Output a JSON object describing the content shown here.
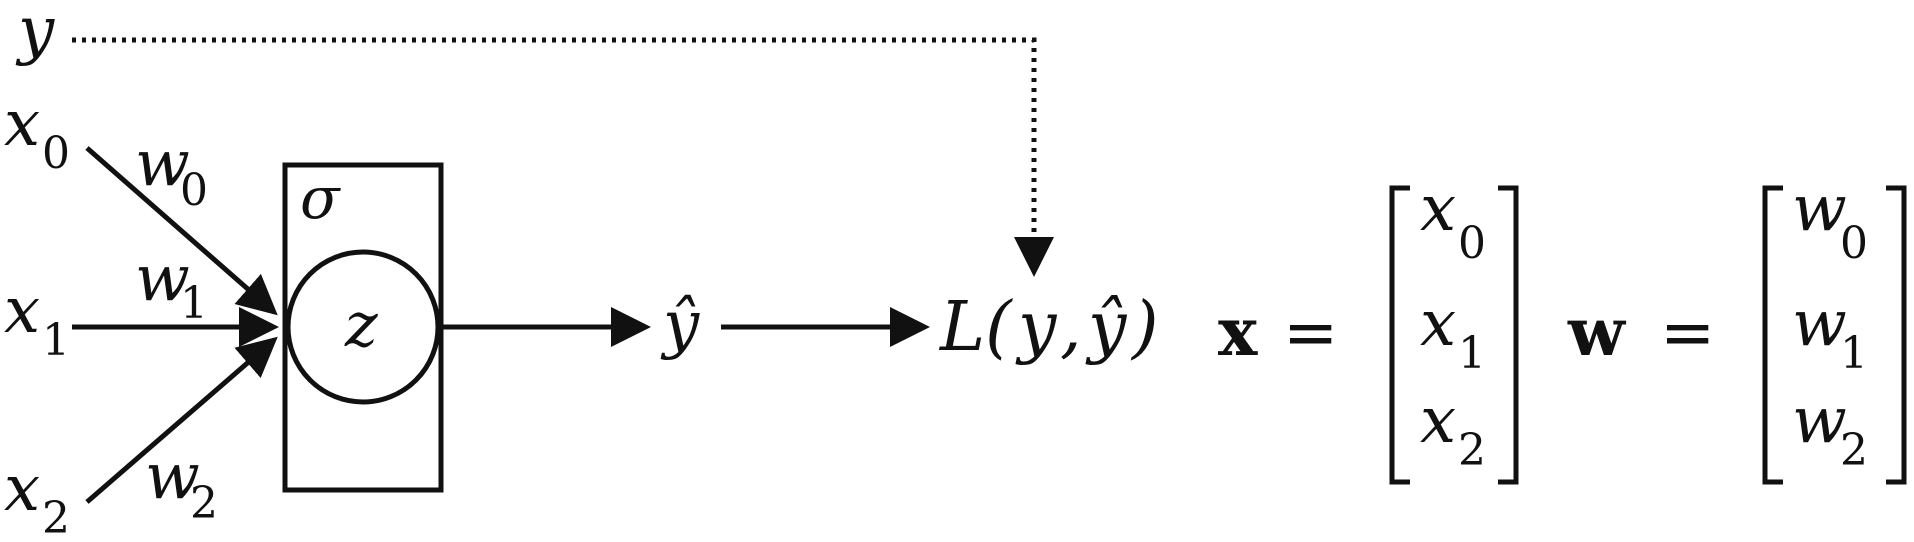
{
  "labels": {
    "target": "y",
    "x0_base": "x",
    "x0_sub": "0",
    "x1_base": "x",
    "x1_sub": "1",
    "x2_base": "x",
    "x2_sub": "2",
    "w0_base": "w",
    "w0_sub": "0",
    "w1_base": "w",
    "w1_sub": "1",
    "w2_base": "w",
    "w2_sub": "2",
    "activation": "σ",
    "preactivation": "z",
    "prediction": "ŷ",
    "loss_open": "L(",
    "loss_y": "y",
    "loss_comma": ",",
    "loss_yhat": "ŷ",
    "loss_close": ")"
  },
  "vectors": {
    "x_symbol": "x",
    "w_symbol": "w",
    "equals": "=",
    "x_entries": [
      {
        "base": "x",
        "sub": "0"
      },
      {
        "base": "x",
        "sub": "1"
      },
      {
        "base": "x",
        "sub": "2"
      }
    ],
    "w_entries": [
      {
        "base": "w",
        "sub": "0"
      },
      {
        "base": "w",
        "sub": "1"
      },
      {
        "base": "w",
        "sub": "2"
      }
    ]
  }
}
